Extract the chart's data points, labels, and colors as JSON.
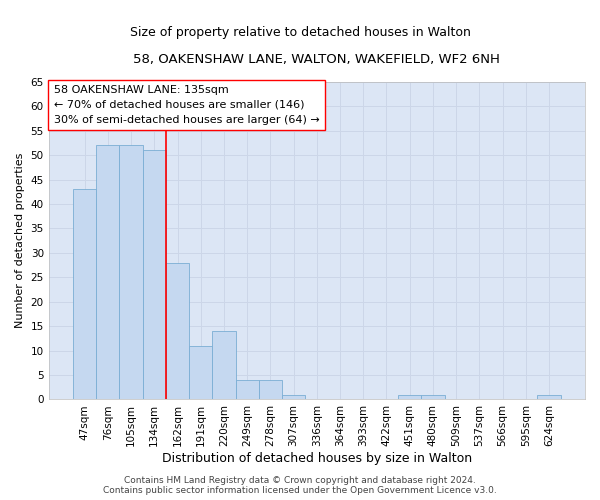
{
  "title1": "58, OAKENSHAW LANE, WALTON, WAKEFIELD, WF2 6NH",
  "title2": "Size of property relative to detached houses in Walton",
  "xlabel": "Distribution of detached houses by size in Walton",
  "ylabel": "Number of detached properties",
  "categories": [
    "47sqm",
    "76sqm",
    "105sqm",
    "134sqm",
    "162sqm",
    "191sqm",
    "220sqm",
    "249sqm",
    "278sqm",
    "307sqm",
    "336sqm",
    "364sqm",
    "393sqm",
    "422sqm",
    "451sqm",
    "480sqm",
    "509sqm",
    "537sqm",
    "566sqm",
    "595sqm",
    "624sqm"
  ],
  "values": [
    43,
    52,
    52,
    51,
    28,
    11,
    14,
    4,
    4,
    1,
    0,
    0,
    0,
    0,
    1,
    1,
    0,
    0,
    0,
    0,
    1
  ],
  "bar_color": "#c5d8f0",
  "bar_edge_color": "#7aadd4",
  "grid_color": "#ccd6e8",
  "background_color": "#dce6f5",
  "ylim": [
    0,
    65
  ],
  "yticks": [
    0,
    5,
    10,
    15,
    20,
    25,
    30,
    35,
    40,
    45,
    50,
    55,
    60,
    65
  ],
  "annotation_box_text": "58 OAKENSHAW LANE: 135sqm\n← 70% of detached houses are smaller (146)\n30% of semi-detached houses are larger (64) →",
  "footer1": "Contains HM Land Registry data © Crown copyright and database right 2024.",
  "footer2": "Contains public sector information licensed under the Open Government Licence v3.0.",
  "title1_fontsize": 9.5,
  "title2_fontsize": 9,
  "xlabel_fontsize": 9,
  "ylabel_fontsize": 8,
  "tick_fontsize": 7.5,
  "annotation_fontsize": 8,
  "footer_fontsize": 6.5,
  "red_line_x": 3.5
}
